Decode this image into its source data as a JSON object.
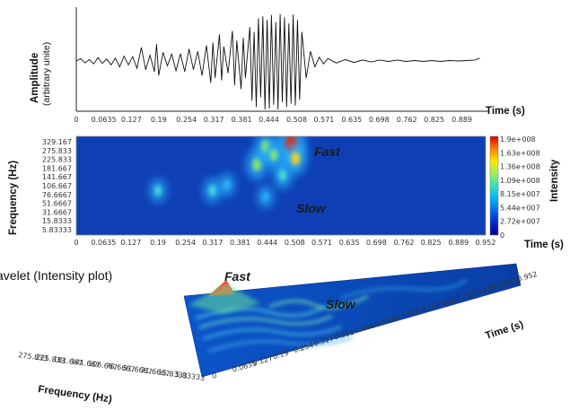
{
  "chart_data": [
    {
      "type": "line",
      "ylabel": "Amplitude",
      "ylabel_sub": "(arbitrary unite)",
      "xlabel": "Time (s)",
      "xticks": [
        "0",
        "0.0635",
        "0.127",
        "0.19",
        "0.254",
        "0.317",
        "0.381",
        "0.444",
        "0.508",
        "0.571",
        "0.635",
        "0.698",
        "0.762",
        "0.825",
        "0.889"
      ],
      "xlim": [
        0,
        0.952
      ],
      "signal": [
        {
          "t": 0.0,
          "a": 0.0
        },
        {
          "t": 0.01,
          "a": 0.05
        },
        {
          "t": 0.02,
          "a": -0.04
        },
        {
          "t": 0.03,
          "a": 0.03
        },
        {
          "t": 0.04,
          "a": -0.06
        },
        {
          "t": 0.05,
          "a": 0.07
        },
        {
          "t": 0.06,
          "a": -0.05
        },
        {
          "t": 0.07,
          "a": 0.04
        },
        {
          "t": 0.08,
          "a": -0.08
        },
        {
          "t": 0.09,
          "a": 0.06
        },
        {
          "t": 0.1,
          "a": -0.12
        },
        {
          "t": 0.11,
          "a": 0.1
        },
        {
          "t": 0.12,
          "a": -0.08
        },
        {
          "t": 0.13,
          "a": 0.09
        },
        {
          "t": 0.14,
          "a": -0.15
        },
        {
          "t": 0.15,
          "a": 0.28
        },
        {
          "t": 0.16,
          "a": -0.18
        },
        {
          "t": 0.17,
          "a": 0.12
        },
        {
          "t": 0.18,
          "a": -0.22
        },
        {
          "t": 0.185,
          "a": 0.35
        },
        {
          "t": 0.19,
          "a": -0.3
        },
        {
          "t": 0.2,
          "a": 0.18
        },
        {
          "t": 0.21,
          "a": -0.1
        },
        {
          "t": 0.22,
          "a": 0.14
        },
        {
          "t": 0.23,
          "a": -0.2
        },
        {
          "t": 0.24,
          "a": 0.15
        },
        {
          "t": 0.25,
          "a": -0.22
        },
        {
          "t": 0.26,
          "a": 0.25
        },
        {
          "t": 0.27,
          "a": -0.18
        },
        {
          "t": 0.28,
          "a": 0.2
        },
        {
          "t": 0.29,
          "a": -0.3
        },
        {
          "t": 0.3,
          "a": 0.32
        },
        {
          "t": 0.31,
          "a": -0.45
        },
        {
          "t": 0.315,
          "a": 0.38
        },
        {
          "t": 0.32,
          "a": -0.35
        },
        {
          "t": 0.33,
          "a": 0.55
        },
        {
          "t": 0.335,
          "a": -0.4
        },
        {
          "t": 0.34,
          "a": 0.3
        },
        {
          "t": 0.35,
          "a": -0.25
        },
        {
          "t": 0.36,
          "a": 0.62
        },
        {
          "t": 0.365,
          "a": -0.5
        },
        {
          "t": 0.37,
          "a": 0.42
        },
        {
          "t": 0.38,
          "a": -0.58
        },
        {
          "t": 0.385,
          "a": 0.48
        },
        {
          "t": 0.39,
          "a": -0.35
        },
        {
          "t": 0.4,
          "a": 0.7
        },
        {
          "t": 0.405,
          "a": -0.82
        },
        {
          "t": 0.41,
          "a": 0.6
        },
        {
          "t": 0.415,
          "a": -0.95
        },
        {
          "t": 0.42,
          "a": 0.88
        },
        {
          "t": 0.425,
          "a": -0.75
        },
        {
          "t": 0.43,
          "a": 0.92
        },
        {
          "t": 0.435,
          "a": -1.0
        },
        {
          "t": 0.44,
          "a": 0.85
        },
        {
          "t": 0.445,
          "a": -0.98
        },
        {
          "t": 0.45,
          "a": 0.95
        },
        {
          "t": 0.455,
          "a": -0.9
        },
        {
          "t": 0.46,
          "a": 0.8
        },
        {
          "t": 0.465,
          "a": -1.0
        },
        {
          "t": 0.47,
          "a": 0.97
        },
        {
          "t": 0.475,
          "a": -0.85
        },
        {
          "t": 0.48,
          "a": 0.9
        },
        {
          "t": 0.485,
          "a": -0.95
        },
        {
          "t": 0.49,
          "a": 0.78
        },
        {
          "t": 0.495,
          "a": -0.88
        },
        {
          "t": 0.5,
          "a": 0.96
        },
        {
          "t": 0.505,
          "a": -0.92
        },
        {
          "t": 0.51,
          "a": 0.85
        },
        {
          "t": 0.515,
          "a": -0.8
        },
        {
          "t": 0.52,
          "a": 0.6
        },
        {
          "t": 0.53,
          "a": -0.35
        },
        {
          "t": 0.54,
          "a": 0.2
        },
        {
          "t": 0.55,
          "a": -0.12
        },
        {
          "t": 0.56,
          "a": 0.08
        },
        {
          "t": 0.57,
          "a": -0.06
        },
        {
          "t": 0.58,
          "a": 0.05
        },
        {
          "t": 0.6,
          "a": -0.04
        },
        {
          "t": 0.62,
          "a": 0.03
        },
        {
          "t": 0.64,
          "a": -0.03
        },
        {
          "t": 0.66,
          "a": 0.02
        },
        {
          "t": 0.68,
          "a": -0.02
        },
        {
          "t": 0.7,
          "a": 0.02
        },
        {
          "t": 0.72,
          "a": -0.01
        },
        {
          "t": 0.74,
          "a": 0.02
        },
        {
          "t": 0.76,
          "a": -0.01
        },
        {
          "t": 0.78,
          "a": 0.01
        },
        {
          "t": 0.8,
          "a": -0.01
        },
        {
          "t": 0.82,
          "a": 0.01
        },
        {
          "t": 0.84,
          "a": -0.01
        },
        {
          "t": 0.86,
          "a": 0.01
        },
        {
          "t": 0.88,
          "a": 0.0
        },
        {
          "t": 0.9,
          "a": 0.01
        },
        {
          "t": 0.92,
          "a": 0.02
        },
        {
          "t": 0.93,
          "a": 0.06
        }
      ]
    },
    {
      "type": "heatmap",
      "ylabel": "Frequency (Hz)",
      "xlabel": "Time (s)",
      "colorbar_label": "Intensity",
      "xticks": [
        "0",
        "0.0635",
        "0.127",
        "0.19",
        "0.254",
        "0.317",
        "0.381",
        "0.444",
        "0.508",
        "0.571",
        "0.635",
        "0.698",
        "0.762",
        "0.825",
        "0.889",
        "0.952"
      ],
      "yticks": [
        "329.167",
        "275.833",
        "225.833",
        "181.667",
        "141.667",
        "106.667",
        "76.6667",
        "51.6667",
        "31.6667",
        "15.8333",
        "5.83333"
      ],
      "colorbar_ticks": [
        "1.9e+008",
        "1.63e+008",
        "1.36e+008",
        "1.09e+008",
        "8.15e+007",
        "5.44e+007",
        "2.72e+007",
        "0"
      ],
      "clim": [
        0,
        190000000
      ],
      "annotations": [
        "Fast",
        "Slow"
      ],
      "hotspots": [
        {
          "t": 0.19,
          "f": 90,
          "intensity": 60000000
        },
        {
          "t": 0.317,
          "f": 90,
          "intensity": 70000000
        },
        {
          "t": 0.35,
          "f": 110,
          "intensity": 55000000
        },
        {
          "t": 0.42,
          "f": 200,
          "intensity": 110000000
        },
        {
          "t": 0.44,
          "f": 300,
          "intensity": 100000000
        },
        {
          "t": 0.46,
          "f": 250,
          "intensity": 95000000
        },
        {
          "t": 0.48,
          "f": 150,
          "intensity": 85000000
        },
        {
          "t": 0.5,
          "f": 320,
          "intensity": 190000000
        },
        {
          "t": 0.51,
          "f": 230,
          "intensity": 120000000
        },
        {
          "t": 0.44,
          "f": 70,
          "intensity": 50000000
        }
      ]
    },
    {
      "type": "surface",
      "caption": "avelet (Intensity plot)",
      "xlabel": "Time (s)",
      "ylabel": "Frequency (Hz)",
      "time_ticks": [
        "0",
        "0.0635",
        "0.127",
        "0.19",
        "0.254",
        "0.317",
        "0.381",
        "0.444",
        "0.508",
        "0.571",
        "0.635",
        "0.698",
        "0.762",
        "0.825",
        "0.889",
        "0.952"
      ],
      "freq_ticks": [
        "275.833",
        "225.833",
        "181.667",
        "141.667",
        "106.667",
        "76.6667",
        "51.6667",
        "31.6667",
        "15.8333",
        "5.83333"
      ],
      "annotations": [
        "Fast",
        "Slow"
      ]
    }
  ]
}
